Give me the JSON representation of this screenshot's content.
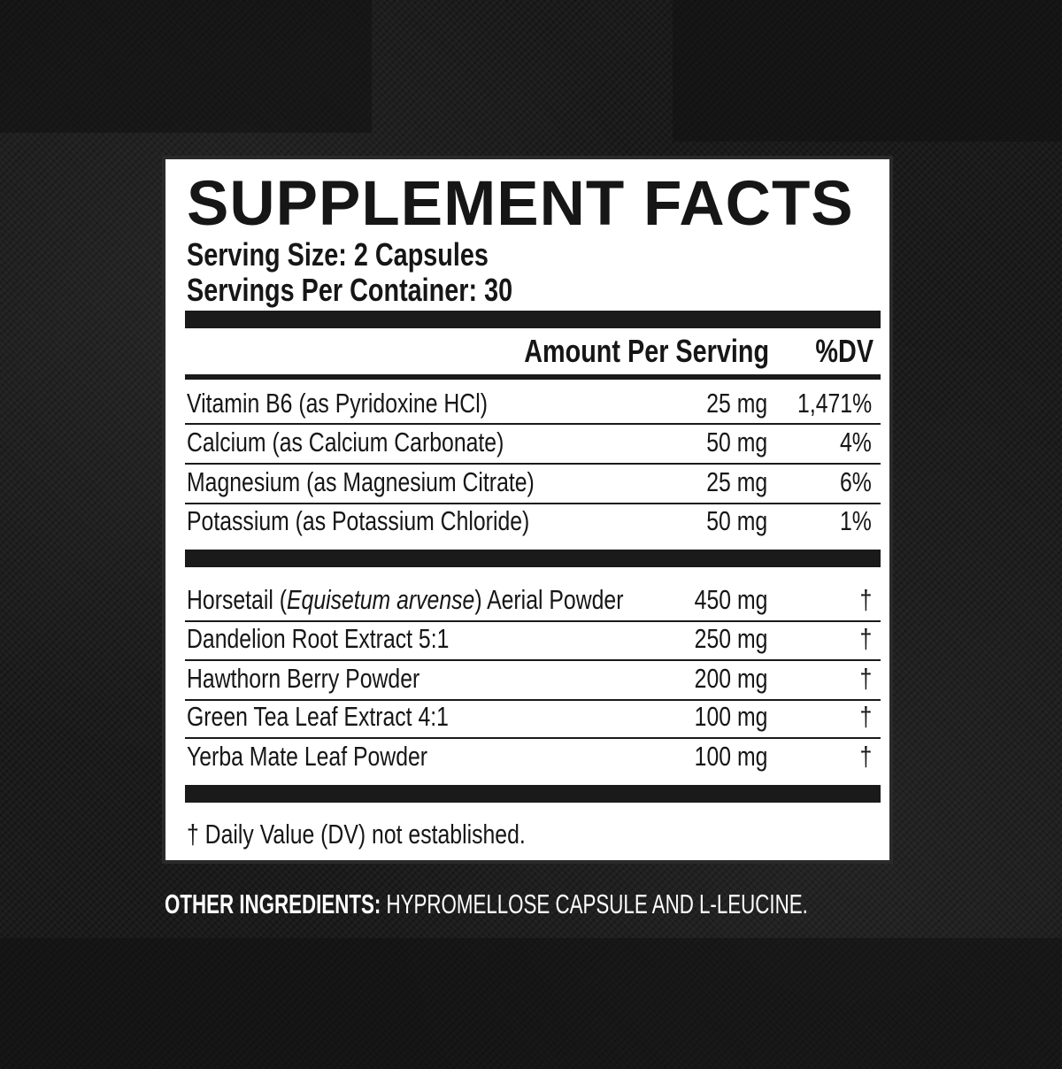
{
  "title": "SUPPLEMENT FACTS",
  "serving_size": "Serving Size: 2 Capsules",
  "servings_per_container": "Servings Per Container: 30",
  "header": {
    "amount": "Amount Per Serving",
    "dv": "%DV"
  },
  "vitamins": [
    {
      "name": "Vitamin B6 (as Pyridoxine HCl)",
      "amount": "25 mg",
      "dv": "1,471%"
    },
    {
      "name": "Calcium (as Calcium Carbonate)",
      "amount": "50 mg",
      "dv": "4%"
    },
    {
      "name": "Magnesium (as Magnesium Citrate)",
      "amount": "25 mg",
      "dv": "6%"
    },
    {
      "name": "Potassium (as Potassium Chloride)",
      "amount": "50 mg",
      "dv": "1%"
    }
  ],
  "botanicals": [
    {
      "name_pre": "Horsetail (",
      "name_italic": "Equisetum arvense",
      "name_post": ") Aerial Powder",
      "amount": "450 mg",
      "dv": "†"
    },
    {
      "name": "Dandelion Root Extract 5:1",
      "amount": "250 mg",
      "dv": "†"
    },
    {
      "name": "Hawthorn Berry Powder",
      "amount": "200 mg",
      "dv": "†"
    },
    {
      "name": "Green Tea Leaf Extract 4:1",
      "amount": "100 mg",
      "dv": "†"
    },
    {
      "name": "Yerba Mate Leaf Powder",
      "amount": "100 mg",
      "dv": "†"
    }
  ],
  "footnote": "† Daily Value (DV) not established.",
  "other_ingredients": {
    "label": "OTHER INGREDIENTS:",
    "value": "HYPROMELLOSE CAPSULE AND L-LEUCINE."
  },
  "colors": {
    "background": "#1b1b1b",
    "panel": "#ffffff",
    "ink": "#161616"
  }
}
